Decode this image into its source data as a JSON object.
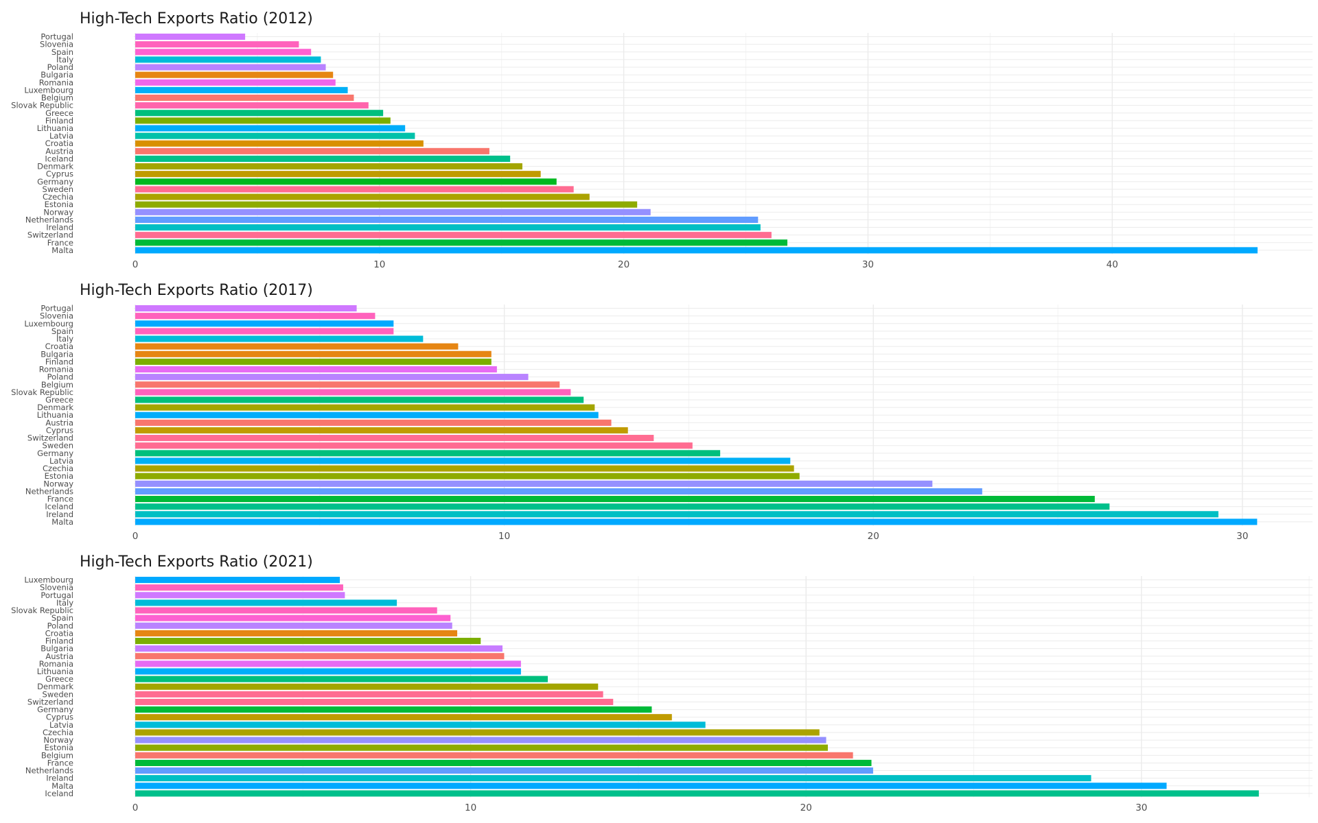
{
  "chart_data": [
    {
      "type": "bar",
      "orientation": "horizontal",
      "title": "High-Tech Exports Ratio (2012)",
      "xlabel": "",
      "ylabel": "",
      "xlim": [
        0,
        48.2
      ],
      "xticks": [
        0,
        10,
        20,
        30,
        40
      ],
      "grid": true,
      "legend": "none",
      "categories": [
        "Portugal",
        "Slovenia",
        "Spain",
        "Italy",
        "Poland",
        "Bulgaria",
        "Romania",
        "Luxembourg",
        "Belgium",
        "Slovak Republic",
        "Greece",
        "Finland",
        "Lithuania",
        "Latvia",
        "Croatia",
        "Austria",
        "Iceland",
        "Denmark",
        "Cyprus",
        "Germany",
        "Sweden",
        "Czechia",
        "Estonia",
        "Norway",
        "Netherlands",
        "Ireland",
        "Switzerland",
        "France",
        "Malta"
      ],
      "values": [
        4.5,
        6.7,
        7.2,
        7.6,
        7.8,
        8.1,
        8.2,
        8.7,
        8.95,
        9.55,
        10.15,
        10.45,
        11.05,
        11.45,
        11.8,
        14.5,
        15.35,
        15.85,
        16.6,
        17.25,
        17.95,
        18.6,
        20.55,
        21.1,
        25.5,
        25.6,
        26.05,
        26.7,
        45.95
      ],
      "colors": [
        "#CF78FF",
        "#FF62BC",
        "#FD61D1",
        "#00BCD8",
        "#B983FF",
        "#E68613",
        "#F066EA",
        "#00B0F6",
        "#F8766D",
        "#FF65AC",
        "#00BF7D",
        "#7CAE00",
        "#00ADFA",
        "#00C1AA",
        "#D89000",
        "#F8766D",
        "#00C08B",
        "#A3A500",
        "#C09B00",
        "#00B81F",
        "#FF6C91",
        "#ABA300",
        "#8EAB00",
        "#9590FF",
        "#619CFF",
        "#00BFC4",
        "#FF6C91",
        "#00BA38",
        "#00A9FF"
      ]
    },
    {
      "type": "bar",
      "orientation": "horizontal",
      "title": "High-Tech Exports Ratio (2017)",
      "xlabel": "",
      "ylabel": "",
      "xlim": [
        0,
        31.9
      ],
      "xticks": [
        0,
        10,
        20,
        30
      ],
      "grid": true,
      "legend": "none",
      "categories": [
        "Portugal",
        "Slovenia",
        "Luxembourg",
        "Spain",
        "Italy",
        "Croatia",
        "Bulgaria",
        "Finland",
        "Romania",
        "Poland",
        "Belgium",
        "Slovak Republic",
        "Greece",
        "Denmark",
        "Lithuania",
        "Austria",
        "Cyprus",
        "Switzerland",
        "Sweden",
        "Germany",
        "Latvia",
        "Czechia",
        "Estonia",
        "Norway",
        "Netherlands",
        "France",
        "Iceland",
        "Ireland",
        "Malta"
      ],
      "values": [
        6.0,
        6.5,
        7.0,
        7.0,
        7.8,
        8.75,
        9.65,
        9.65,
        9.8,
        10.65,
        11.5,
        11.8,
        12.15,
        12.45,
        12.55,
        12.9,
        13.35,
        14.05,
        15.1,
        15.85,
        17.75,
        17.85,
        18.0,
        21.6,
        22.95,
        26.0,
        26.4,
        29.35,
        30.4
      ],
      "colors": [
        "#CF78FF",
        "#FF62BC",
        "#00A9FF",
        "#FF62BC",
        "#00BCD8",
        "#E68613",
        "#E68613",
        "#7CAE00",
        "#E76BF3",
        "#B983FF",
        "#F8766D",
        "#FF62BC",
        "#00BF7D",
        "#A3A500",
        "#00ADFA",
        "#F8766D",
        "#C09B00",
        "#FF6C91",
        "#FF6C91",
        "#00BF7D",
        "#00B0F6",
        "#ABA300",
        "#8EAB00",
        "#9590FF",
        "#619CFF",
        "#00BA38",
        "#00C08B",
        "#00BFC4",
        "#00A9FF"
      ]
    },
    {
      "type": "bar",
      "orientation": "horizontal",
      "title": "High-Tech Exports Ratio (2021)",
      "xlabel": "",
      "ylabel": "",
      "xlim": [
        0,
        35.1
      ],
      "xticks": [
        0,
        10,
        20,
        30
      ],
      "grid": true,
      "legend": "none",
      "categories": [
        "Luxembourg",
        "Slovenia",
        "Portugal",
        "Italy",
        "Slovak Republic",
        "Spain",
        "Poland",
        "Croatia",
        "Finland",
        "Bulgaria",
        "Austria",
        "Romania",
        "Lithuania",
        "Greece",
        "Denmark",
        "Sweden",
        "Switzerland",
        "Germany",
        "Cyprus",
        "Latvia",
        "Czechia",
        "Norway",
        "Estonia",
        "Belgium",
        "France",
        "Netherlands",
        "Ireland",
        "Malta",
        "Iceland"
      ],
      "values": [
        6.1,
        6.2,
        6.25,
        7.8,
        9.0,
        9.4,
        9.45,
        9.6,
        10.3,
        10.95,
        11.0,
        11.5,
        11.5,
        12.3,
        13.8,
        13.95,
        14.25,
        15.4,
        16.0,
        17.0,
        20.4,
        20.6,
        20.65,
        21.4,
        21.95,
        22.0,
        28.5,
        30.75,
        33.5
      ],
      "colors": [
        "#00A9FF",
        "#FF62BC",
        "#CF78FF",
        "#00BCD8",
        "#FF62BC",
        "#FD61D1",
        "#B983FF",
        "#E68613",
        "#7CAE00",
        "#C77CFF",
        "#F8766D",
        "#E76BF3",
        "#00ADFA",
        "#00BF7D",
        "#A3A500",
        "#FF6C91",
        "#FF6C91",
        "#00BA38",
        "#C09B00",
        "#00BCD8",
        "#ABA300",
        "#9590FF",
        "#8EAB00",
        "#F8766D",
        "#00BA38",
        "#619CFF",
        "#00BFC4",
        "#00A9FF",
        "#00C08B"
      ]
    }
  ]
}
